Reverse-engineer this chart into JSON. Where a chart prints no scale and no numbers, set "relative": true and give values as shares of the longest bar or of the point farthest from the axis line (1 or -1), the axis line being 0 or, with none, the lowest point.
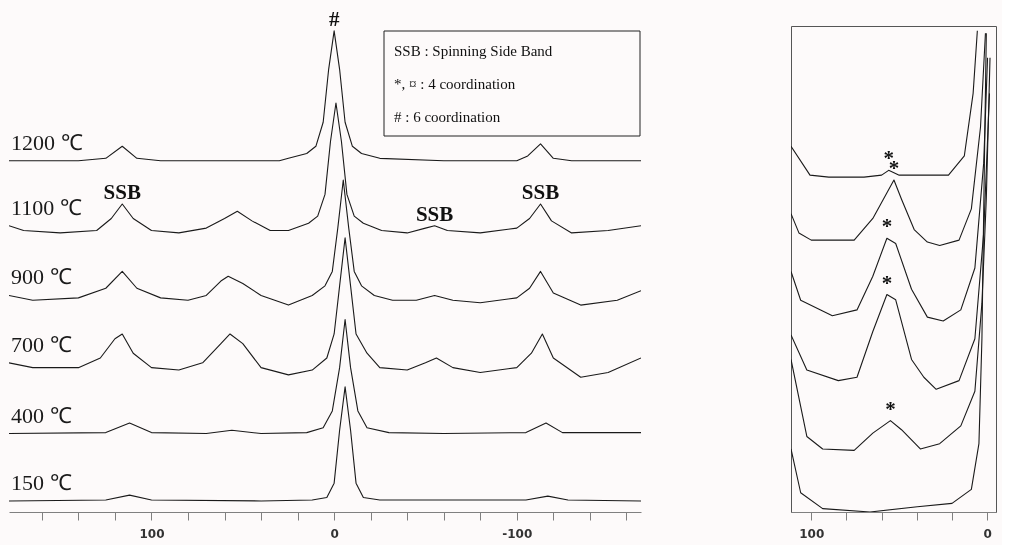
{
  "chart_data": [
    {
      "type": "line",
      "relative": true,
      "xlim": [
        178,
        -168
      ],
      "xticks": [
        {
          "value": 160,
          "label": null
        },
        {
          "value": 140,
          "label": null
        },
        {
          "value": 120,
          "label": null
        },
        100,
        {
          "value": 80,
          "label": null
        },
        {
          "value": 60,
          "label": null
        },
        {
          "value": 40,
          "label": null
        },
        {
          "value": 20,
          "label": null
        },
        0,
        {
          "value": -20,
          "label": null
        },
        {
          "value": -40,
          "label": null
        },
        {
          "value": -60,
          "label": null
        },
        {
          "value": -80,
          "label": null
        },
        -100,
        {
          "value": -120,
          "label": null
        },
        {
          "value": -140,
          "label": null
        },
        {
          "value": -160,
          "label": null
        }
      ],
      "tick_labels": "x",
      "annotations": [
        "SSB : Spinning Side Band",
        "*, ¤ : 4 coordination",
        " #    : 6 coordination",
        {
          "text": "#",
          "x": 0,
          "y": 1.0
        },
        {
          "text": "SSB",
          "x": 116,
          "y": 0.64
        },
        {
          "text": "SSB",
          "x": -55,
          "y": 0.595
        },
        {
          "text": "SSB",
          "x": -113,
          "y": 0.64
        }
      ],
      "series": [
        {
          "name": "1200 ℃",
          "color": "#1a1a1a",
          "x": [
            178,
            140,
            125,
            116,
            108,
            95,
            60,
            30,
            25,
            15,
            10,
            6,
            3,
            0,
            -3,
            -6,
            -10,
            -15,
            -25,
            -60,
            -100,
            -106,
            -113,
            -120,
            -130,
            -168
          ],
          "values": [
            0.73,
            0.73,
            0.735,
            0.76,
            0.735,
            0.73,
            0.73,
            0.73,
            0.735,
            0.745,
            0.76,
            0.81,
            0.92,
            1.0,
            0.92,
            0.81,
            0.76,
            0.745,
            0.735,
            0.73,
            0.73,
            0.74,
            0.765,
            0.735,
            0.73,
            0.73
          ]
        },
        {
          "name": "1100 ℃",
          "color": "#1a1a1a",
          "x": [
            178,
            170,
            150,
            130,
            122,
            116,
            110,
            100,
            85,
            70,
            60,
            53,
            45,
            35,
            25,
            14,
            9,
            5,
            2,
            -1,
            -4,
            -7,
            -11,
            -16,
            -26,
            -40,
            -50,
            -55,
            -62,
            -80,
            -100,
            -107,
            -113,
            -119,
            -130,
            -150,
            -168
          ],
          "values": [
            0.595,
            0.585,
            0.58,
            0.585,
            0.61,
            0.64,
            0.61,
            0.585,
            0.58,
            0.59,
            0.61,
            0.625,
            0.605,
            0.585,
            0.585,
            0.6,
            0.615,
            0.66,
            0.77,
            0.85,
            0.77,
            0.66,
            0.615,
            0.6,
            0.585,
            0.58,
            0.59,
            0.595,
            0.585,
            0.58,
            0.59,
            0.61,
            0.64,
            0.605,
            0.58,
            0.585,
            0.595
          ]
        },
        {
          "name": "900 ℃",
          "color": "#1a1a1a",
          "x": [
            178,
            165,
            140,
            125,
            116,
            108,
            95,
            80,
            70,
            62,
            58,
            50,
            40,
            25,
            12,
            5,
            1,
            -2,
            -5,
            -8,
            -11,
            -15,
            -22,
            -32,
            -45,
            -55,
            -65,
            -80,
            -100,
            -107,
            -113,
            -120,
            -135,
            -155,
            -168
          ],
          "values": [
            0.45,
            0.44,
            0.445,
            0.465,
            0.5,
            0.465,
            0.445,
            0.44,
            0.45,
            0.48,
            0.49,
            0.475,
            0.45,
            0.43,
            0.45,
            0.47,
            0.5,
            0.59,
            0.69,
            0.59,
            0.5,
            0.47,
            0.45,
            0.44,
            0.44,
            0.45,
            0.44,
            0.435,
            0.445,
            0.465,
            0.5,
            0.455,
            0.43,
            0.44,
            0.46
          ]
        },
        {
          "name": "700 ℃",
          "color": "#1a1a1a",
          "x": [
            178,
            165,
            140,
            128,
            120,
            116,
            110,
            100,
            85,
            72,
            62,
            57,
            50,
            40,
            25,
            12,
            4,
            0,
            -3,
            -6,
            -9,
            -12,
            -18,
            -25,
            -40,
            -50,
            -56,
            -65,
            -80,
            -100,
            -108,
            -114,
            -120,
            -135,
            -150,
            -168
          ],
          "values": [
            0.31,
            0.3,
            0.3,
            0.32,
            0.36,
            0.37,
            0.33,
            0.3,
            0.295,
            0.31,
            0.35,
            0.37,
            0.35,
            0.3,
            0.285,
            0.295,
            0.32,
            0.37,
            0.47,
            0.57,
            0.47,
            0.37,
            0.33,
            0.3,
            0.295,
            0.31,
            0.32,
            0.3,
            0.29,
            0.3,
            0.33,
            0.37,
            0.32,
            0.28,
            0.29,
            0.32
          ]
        },
        {
          "name": "400 ℃",
          "color": "#1a1a1a",
          "x": [
            178,
            125,
            112,
            100,
            70,
            56,
            40,
            15,
            6,
            1,
            -3,
            -6,
            -9,
            -13,
            -18,
            -30,
            -60,
            -105,
            -116,
            -125,
            -168
          ],
          "values": [
            0.163,
            0.165,
            0.185,
            0.165,
            0.163,
            0.17,
            0.163,
            0.165,
            0.175,
            0.21,
            0.3,
            0.4,
            0.3,
            0.21,
            0.175,
            0.165,
            0.163,
            0.165,
            0.185,
            0.165,
            0.165
          ]
        },
        {
          "name": "150 ℃",
          "color": "#1a1a1a",
          "x": [
            178,
            125,
            112,
            100,
            40,
            12,
            4,
            0,
            -3,
            -6,
            -9,
            -12,
            -16,
            -25,
            -105,
            -117,
            -128,
            -168
          ],
          "values": [
            0.023,
            0.025,
            0.035,
            0.025,
            0.023,
            0.025,
            0.03,
            0.06,
            0.17,
            0.26,
            0.17,
            0.06,
            0.03,
            0.025,
            0.025,
            0.033,
            0.025,
            0.023
          ]
        }
      ]
    },
    {
      "type": "line",
      "relative": true,
      "xlim": [
        111.5,
        -5
      ],
      "xticks": [
        100,
        {
          "value": 80,
          "label": null
        },
        {
          "value": 60,
          "label": null
        },
        {
          "value": 40,
          "label": null
        },
        {
          "value": 20,
          "label": null
        },
        0
      ],
      "tick_labels": "x",
      "annotations": [
        {
          "text": "*",
          "x": 56,
          "y": 0.71
        },
        {
          "text": "*",
          "x": 53,
          "y": 0.69
        },
        {
          "text": "*",
          "x": 57,
          "y": 0.569
        },
        {
          "text": "*",
          "x": 57,
          "y": 0.452
        },
        {
          "text": "*",
          "x": 55,
          "y": 0.19
        }
      ],
      "series": [
        {
          "color": "#1a1a1a",
          "x": [
            111.5,
            100.7,
            90,
            70,
            60,
            56,
            50,
            35,
            22,
            13,
            8,
            5.6
          ],
          "values": [
            0.76,
            0.7,
            0.696,
            0.696,
            0.7,
            0.71,
            0.7,
            0.7,
            0.7,
            0.74,
            0.87,
            1.0
          ]
        },
        {
          "color": "#1a1a1a",
          "x": [
            111.5,
            107,
            100,
            75.6,
            65,
            59,
            53,
            48.7,
            41.5,
            34,
            27,
            16,
            9,
            3.8,
            1
          ],
          "values": [
            0.62,
            0.58,
            0.565,
            0.565,
            0.61,
            0.65,
            0.69,
            0.65,
            0.587,
            0.561,
            0.554,
            0.565,
            0.63,
            0.8,
            0.995
          ]
        },
        {
          "color": "#1a1a1a",
          "x": [
            111.5,
            106,
            88,
            74,
            65,
            57,
            52,
            43,
            34,
            25,
            15,
            7,
            2,
            -0.2
          ],
          "values": [
            0.5,
            0.44,
            0.408,
            0.42,
            0.49,
            0.569,
            0.558,
            0.463,
            0.405,
            0.397,
            0.42,
            0.507,
            0.725,
            0.944
          ]
        },
        {
          "color": "#1a1a1a",
          "x": [
            111.5,
            102.5,
            84.6,
            74,
            65,
            57,
            52,
            43,
            36,
            29,
            16,
            7,
            2,
            -1.3
          ],
          "values": [
            0.368,
            0.295,
            0.273,
            0.28,
            0.375,
            0.452,
            0.441,
            0.317,
            0.28,
            0.255,
            0.273,
            0.36,
            0.58,
            0.87
          ]
        },
        {
          "color": "#1a1a1a",
          "x": [
            111.5,
            102.5,
            93.5,
            75.6,
            65,
            55,
            48.7,
            38,
            27,
            15,
            7,
            3,
            0.5,
            -1.6
          ],
          "values": [
            0.317,
            0.157,
            0.131,
            0.128,
            0.164,
            0.19,
            0.171,
            0.131,
            0.142,
            0.179,
            0.251,
            0.434,
            0.652,
            0.944
          ]
        },
        {
          "color": "#1a1a1a",
          "x": [
            111.5,
            106,
            93.5,
            66.6,
            39.7,
            20,
            9,
            4.7,
            3,
            1.6,
            0.5
          ],
          "values": [
            0.131,
            0.04,
            0.007,
            0.0,
            0.011,
            0.018,
            0.047,
            0.142,
            0.36,
            0.725,
            0.995
          ]
        }
      ]
    }
  ]
}
